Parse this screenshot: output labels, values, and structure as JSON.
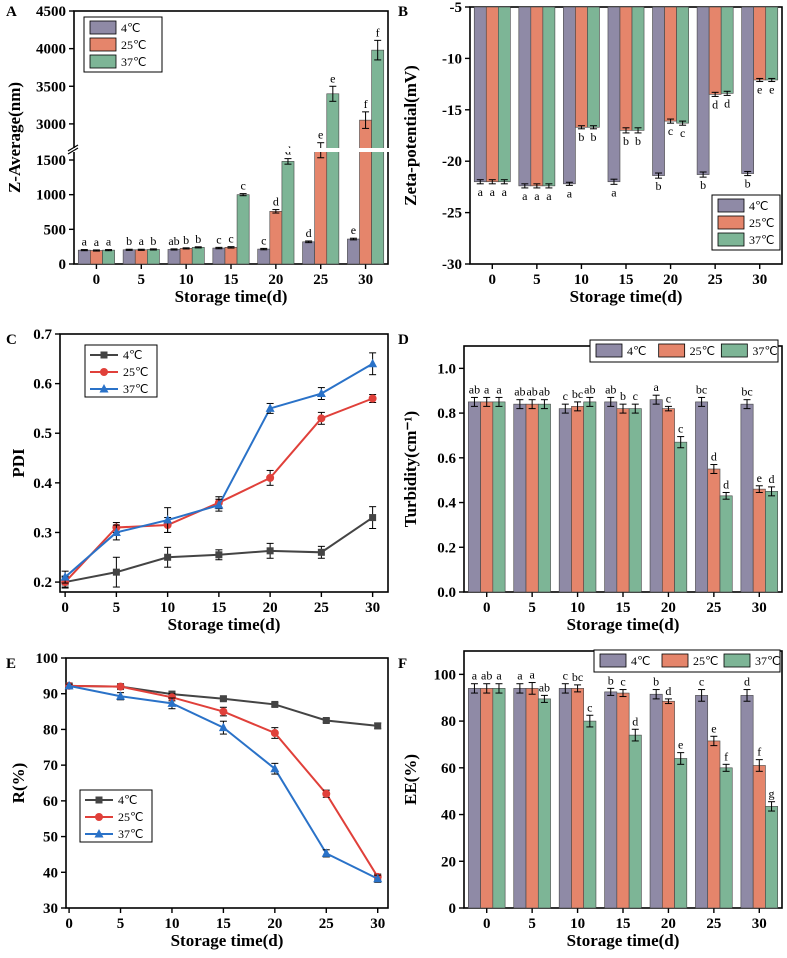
{
  "colors": {
    "c4": "#8f8aa6",
    "c25": "#e5856b",
    "c37": "#7db596",
    "line4": "#444444",
    "line25": "#e0403a",
    "line37": "#2a72c8"
  },
  "chart_data": [
    {
      "id": "A",
      "panel_label": "A",
      "type": "bar",
      "xlabel": "Storage time(d)",
      "ylabel": "Z-Average(nm)",
      "categories": [
        "0",
        "5",
        "10",
        "15",
        "20",
        "25",
        "30"
      ],
      "series": [
        {
          "name": "4℃",
          "values": [
            200,
            205,
            210,
            230,
            215,
            320,
            360
          ],
          "err": [
            8,
            8,
            8,
            10,
            10,
            12,
            12
          ],
          "letters": [
            "a",
            "b",
            "ab",
            "c",
            "c",
            "d",
            "e"
          ]
        },
        {
          "name": "25℃",
          "values": [
            195,
            205,
            225,
            240,
            760,
            2650,
            3050
          ],
          "err": [
            8,
            8,
            8,
            10,
            25,
            100,
            110
          ],
          "letters": [
            "a",
            "a",
            "b",
            "c",
            "d",
            "e",
            "f"
          ]
        },
        {
          "name": "37℃",
          "values": [
            200,
            210,
            240,
            1000,
            1480,
            3400,
            3980
          ],
          "err": [
            8,
            8,
            8,
            15,
            40,
            100,
            130
          ],
          "letters": [
            "a",
            "b",
            "b",
            "c",
            "d",
            "e",
            "f"
          ]
        }
      ],
      "yticks": [
        "0",
        "500",
        "1000",
        "1500",
        "3000",
        "3500",
        "4000",
        "4500"
      ],
      "y_break": [
        1550,
        2600
      ],
      "ylim": [
        0,
        4500
      ],
      "legend": "top-left"
    },
    {
      "id": "B",
      "panel_label": "B",
      "type": "bar",
      "xlabel": "Storage time(d)",
      "ylabel": "Zeta-potential(mV)",
      "categories": [
        "0",
        "5",
        "10",
        "15",
        "20",
        "25",
        "30"
      ],
      "series": [
        {
          "name": "4℃",
          "values": [
            -22.0,
            -22.4,
            -22.2,
            -22.0,
            -21.4,
            -21.3,
            -21.2
          ],
          "err": [
            0.2,
            0.2,
            0.15,
            0.25,
            0.25,
            0.25,
            0.2
          ],
          "letters": [
            "a",
            "a",
            "a",
            "a",
            "b",
            "b",
            "b"
          ]
        },
        {
          "name": "25℃",
          "values": [
            -22.0,
            -22.4,
            -16.7,
            -17.0,
            -16.1,
            -13.5,
            -12.1
          ],
          "err": [
            0.2,
            0.2,
            0.15,
            0.25,
            0.2,
            0.2,
            0.15
          ],
          "letters": [
            "a",
            "a",
            "b",
            "b",
            "c",
            "d",
            "e"
          ]
        },
        {
          "name": "37℃",
          "values": [
            -22.0,
            -22.4,
            -16.7,
            -17.0,
            -16.3,
            -13.4,
            -12.1
          ],
          "err": [
            0.2,
            0.2,
            0.15,
            0.25,
            0.2,
            0.2,
            0.15
          ],
          "letters": [
            "a",
            "a",
            "b",
            "b",
            "c",
            "d",
            "e"
          ]
        }
      ],
      "yticks": [
        "-5",
        "-10",
        "-15",
        "-20",
        "-25",
        "-30"
      ],
      "ylim": [
        -30,
        -5
      ],
      "legend": "bottom-right"
    },
    {
      "id": "C",
      "panel_label": "C",
      "type": "line",
      "xlabel": "Storage time(d)",
      "ylabel": "PDI",
      "x": [
        0,
        5,
        10,
        15,
        20,
        25,
        30
      ],
      "series": [
        {
          "name": "4℃",
          "marker": "square",
          "values": [
            0.2,
            0.22,
            0.25,
            0.255,
            0.263,
            0.26,
            0.33
          ],
          "err": [
            0.01,
            0.03,
            0.02,
            0.01,
            0.015,
            0.012,
            0.022
          ]
        },
        {
          "name": "25℃",
          "marker": "circle",
          "values": [
            0.2,
            0.31,
            0.315,
            0.36,
            0.41,
            0.53,
            0.57
          ],
          "err": [
            0.012,
            0.01,
            0.015,
            0.012,
            0.015,
            0.012,
            0.008
          ]
        },
        {
          "name": "37℃",
          "marker": "triangle",
          "values": [
            0.21,
            0.3,
            0.325,
            0.355,
            0.55,
            0.58,
            0.64
          ],
          "err": [
            0.012,
            0.015,
            0.025,
            0.012,
            0.01,
            0.012,
            0.022
          ]
        }
      ],
      "xticks": [
        "0",
        "5",
        "10",
        "15",
        "20",
        "25",
        "30"
      ],
      "yticks": [
        "0.2",
        "0.3",
        "0.4",
        "0.5",
        "0.6",
        "0.7"
      ],
      "ylim": [
        0.18,
        0.7
      ],
      "xlim": [
        -0.5,
        31.5
      ],
      "legend": "top-left"
    },
    {
      "id": "D",
      "panel_label": "D",
      "type": "bar",
      "xlabel": "Storage time(d)",
      "ylabel": "Turbidity(cm⁻¹)",
      "categories": [
        "0",
        "5",
        "10",
        "15",
        "20",
        "25",
        "30"
      ],
      "series": [
        {
          "name": "4℃",
          "values": [
            0.85,
            0.84,
            0.82,
            0.85,
            0.86,
            0.85,
            0.84
          ],
          "err": [
            0.02,
            0.02,
            0.02,
            0.02,
            0.02,
            0.02,
            0.02
          ],
          "letters": [
            "ab",
            "ab",
            "c",
            "ab",
            "a",
            "bc",
            "bc"
          ]
        },
        {
          "name": "25℃",
          "values": [
            0.85,
            0.84,
            0.83,
            0.82,
            0.82,
            0.55,
            0.46
          ],
          "err": [
            0.02,
            0.02,
            0.02,
            0.02,
            0.01,
            0.02,
            0.015
          ],
          "letters": [
            "a",
            "ab",
            "bc",
            "b",
            "c",
            "d",
            "e"
          ]
        },
        {
          "name": "37℃",
          "values": [
            0.85,
            0.84,
            0.85,
            0.82,
            0.67,
            0.43,
            0.45
          ],
          "err": [
            0.02,
            0.02,
            0.02,
            0.02,
            0.025,
            0.015,
            0.02
          ],
          "letters": [
            "a",
            "ab",
            "ab",
            "c",
            "c",
            "d",
            "d"
          ]
        }
      ],
      "yticks": [
        "0.0",
        "0.2",
        "0.4",
        "0.6",
        "0.8",
        "1.0"
      ],
      "ylim": [
        0,
        1.1
      ],
      "legend": "top-right"
    },
    {
      "id": "E",
      "panel_label": "E",
      "type": "line",
      "xlabel": "Storage time(d)",
      "ylabel": "R(%)",
      "x": [
        0,
        5,
        10,
        15,
        20,
        25,
        30
      ],
      "series": [
        {
          "name": "4℃",
          "marker": "square",
          "values": [
            92.2,
            92.0,
            89.9,
            88.6,
            87.0,
            82.5,
            81.0
          ],
          "err": [
            0.5,
            0.5,
            0.6,
            0.5,
            0.5,
            0.5,
            0.8
          ]
        },
        {
          "name": "25℃",
          "marker": "circle",
          "values": [
            92.2,
            92.0,
            89.0,
            85.0,
            79.0,
            62.0,
            38.7
          ],
          "err": [
            0.5,
            0.5,
            1.0,
            1.2,
            1.5,
            1.0,
            0.8
          ]
        },
        {
          "name": "37℃",
          "marker": "triangle",
          "values": [
            92.2,
            89.3,
            87.3,
            80.5,
            69.0,
            45.3,
            38.2
          ],
          "err": [
            0.5,
            1.0,
            1.5,
            1.8,
            1.5,
            1.0,
            1.0
          ]
        }
      ],
      "xticks": [
        "0",
        "5",
        "10",
        "15",
        "20",
        "25",
        "30"
      ],
      "yticks": [
        "30",
        "40",
        "50",
        "60",
        "70",
        "80",
        "90",
        "100"
      ],
      "ylim": [
        30,
        100
      ],
      "xlim": [
        -0.3,
        31
      ],
      "legend": "bottom-left"
    },
    {
      "id": "F",
      "panel_label": "F",
      "type": "bar",
      "xlabel": "Storage time(d)",
      "ylabel": "EE(%)",
      "categories": [
        "0",
        "5",
        "10",
        "15",
        "20",
        "25",
        "30"
      ],
      "series": [
        {
          "name": "4℃",
          "values": [
            94,
            94,
            94,
            92.5,
            91.5,
            91,
            91
          ],
          "err": [
            2,
            2,
            2,
            1.5,
            2,
            2.5,
            2.5
          ],
          "letters": [
            "a",
            "a",
            "c",
            "b",
            "b",
            "c",
            "d"
          ]
        },
        {
          "name": "25℃",
          "values": [
            94,
            94,
            94,
            92,
            88.5,
            71.5,
            61
          ],
          "err": [
            2,
            2.5,
            1.5,
            1.5,
            1,
            2,
            2.5
          ],
          "letters": [
            "ab",
            "a",
            "bc",
            "c",
            "d",
            "e",
            "f"
          ]
        },
        {
          "name": "37℃",
          "values": [
            94,
            89.5,
            80,
            74,
            64,
            60,
            43.5
          ],
          "err": [
            2,
            1.5,
            2.5,
            2.5,
            2.5,
            1.5,
            2
          ],
          "letters": [
            "a",
            "ab",
            "c",
            "d",
            "e",
            "f",
            "g"
          ]
        }
      ],
      "yticks": [
        "0",
        "20",
        "40",
        "60",
        "80",
        "100"
      ],
      "ylim": [
        0,
        110
      ],
      "legend": "top-right"
    }
  ]
}
